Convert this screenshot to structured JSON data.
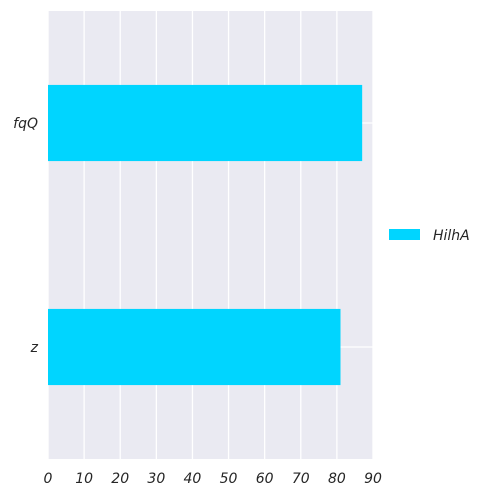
{
  "chart_data": {
    "type": "bar",
    "orientation": "horizontal",
    "title": "",
    "xlabel": "",
    "ylabel": "",
    "categories": [
      "fqQ",
      "z"
    ],
    "series": [
      {
        "name": "HilhA",
        "values": [
          87,
          81
        ],
        "color": "#00d5ff"
      }
    ],
    "xlim": [
      0,
      90
    ],
    "xticks": [
      0,
      10,
      20,
      30,
      40,
      50,
      60,
      70,
      80,
      90
    ],
    "grid": true,
    "legend_position": "right",
    "background_color": "#eaeaf2",
    "grid_color": "#ffffff"
  }
}
